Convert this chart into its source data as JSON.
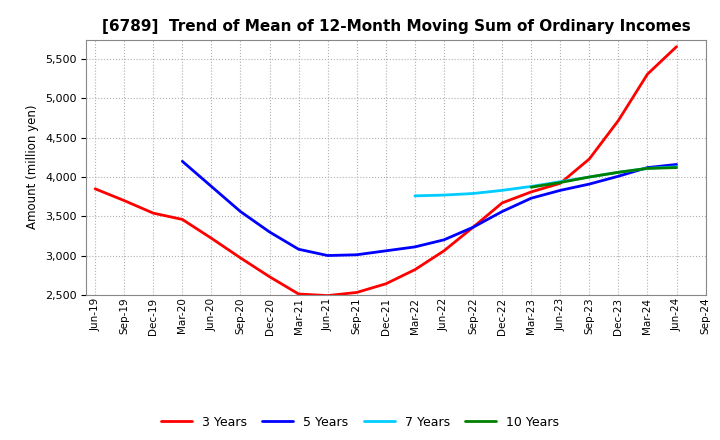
{
  "title": "[6789]  Trend of Mean of 12-Month Moving Sum of Ordinary Incomes",
  "ylabel": "Amount (million yen)",
  "ylim": [
    2500,
    5750
  ],
  "yticks": [
    2500,
    3000,
    3500,
    4000,
    4500,
    5000,
    5500
  ],
  "background_color": "#ffffff",
  "grid_color": "#b0b0b0",
  "x_labels": [
    "Jun-19",
    "Sep-19",
    "Dec-19",
    "Mar-20",
    "Jun-20",
    "Sep-20",
    "Dec-20",
    "Mar-21",
    "Jun-21",
    "Sep-21",
    "Dec-21",
    "Mar-22",
    "Jun-22",
    "Sep-22",
    "Dec-22",
    "Mar-23",
    "Jun-23",
    "Sep-23",
    "Dec-23",
    "Mar-24",
    "Jun-24",
    "Sep-24"
  ],
  "series": {
    "3 Years": {
      "color": "#ff0000",
      "data_x": [
        0,
        1,
        2,
        3,
        4,
        5,
        6,
        7,
        8,
        9,
        10,
        11,
        12,
        13,
        14,
        15,
        16,
        17,
        18,
        19,
        20
      ],
      "data_y": [
        3850,
        3700,
        3540,
        3460,
        3220,
        2970,
        2730,
        2510,
        2490,
        2530,
        2640,
        2820,
        3060,
        3360,
        3670,
        3810,
        3920,
        4230,
        4720,
        5310,
        5660
      ]
    },
    "5 Years": {
      "color": "#0000ff",
      "data_x": [
        3,
        4,
        5,
        6,
        7,
        8,
        9,
        10,
        11,
        12,
        13,
        14,
        15,
        16,
        17,
        18,
        19,
        20
      ],
      "data_y": [
        4200,
        3880,
        3560,
        3300,
        3080,
        3000,
        3010,
        3060,
        3110,
        3200,
        3360,
        3560,
        3730,
        3830,
        3910,
        4010,
        4120,
        4160
      ]
    },
    "7 Years": {
      "color": "#00ccff",
      "data_x": [
        11,
        12,
        13,
        14,
        15,
        16,
        17,
        18,
        19,
        20
      ],
      "data_y": [
        3760,
        3770,
        3790,
        3830,
        3880,
        3940,
        4000,
        4060,
        4110,
        4130
      ]
    },
    "10 Years": {
      "color": "#008000",
      "data_x": [
        15,
        16,
        17,
        18,
        19,
        20
      ],
      "data_y": [
        3870,
        3930,
        4000,
        4060,
        4110,
        4120
      ]
    }
  },
  "legend_order": [
    "3 Years",
    "5 Years",
    "7 Years",
    "10 Years"
  ],
  "line_width": 2.0
}
